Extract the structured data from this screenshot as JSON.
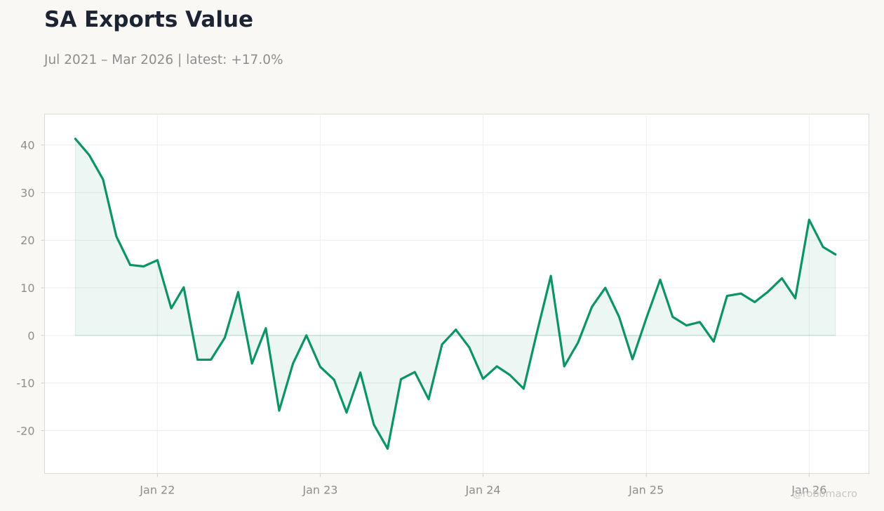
{
  "header": {
    "title": "SA Exports Value",
    "subtitle": "Jul 2021 – Mar 2026 | latest: +17.0%",
    "watermark": "@robomacro"
  },
  "colors": {
    "line": "#0c9466",
    "fill": "#0c9466",
    "background": "#f9f8f5",
    "plot_background": "#ffffff"
  },
  "chart_data": {
    "type": "area",
    "title": "SA Exports Value",
    "subtitle": "Jul 2021 – Mar 2026 | latest: +17.0%",
    "xlabel": "",
    "ylabel": "",
    "grid": true,
    "legend": "none",
    "ylim": [
      -29,
      46.5
    ],
    "xlim": [
      "2021-04-23",
      "2026-05-15"
    ],
    "y_ticks": [
      40,
      30,
      20,
      10,
      0,
      -10,
      -20
    ],
    "y_tick_labels": [
      "40",
      "30",
      "20",
      "10",
      "0",
      "-10",
      "-20"
    ],
    "x_ticks": [
      "2022-01-01",
      "2023-01-01",
      "2024-01-01",
      "2025-01-01",
      "2026-01-01"
    ],
    "x_tick_labels": [
      "Jan 22",
      "Jan 23",
      "Jan 24",
      "Jan 25",
      "Jan 26"
    ],
    "series": [
      {
        "x": [
          "2021-07-01",
          "2021-08-01",
          "2021-09-01",
          "2021-10-01",
          "2021-11-01",
          "2021-12-01",
          "2022-01-01",
          "2022-02-01",
          "2022-03-01",
          "2022-04-01",
          "2022-05-01",
          "2022-06-01",
          "2022-07-01",
          "2022-08-01",
          "2022-09-01",
          "2022-10-01",
          "2022-11-01",
          "2022-12-01",
          "2023-01-01",
          "2023-02-01",
          "2023-03-01",
          "2023-04-01",
          "2023-05-01",
          "2023-06-01",
          "2023-07-01",
          "2023-08-01",
          "2023-09-01",
          "2023-10-01",
          "2023-11-01",
          "2023-12-01",
          "2024-01-01",
          "2024-02-01",
          "2024-03-01",
          "2024-04-01",
          "2024-05-01",
          "2024-06-01",
          "2024-07-01",
          "2024-08-01",
          "2024-09-01",
          "2024-10-01",
          "2024-11-01",
          "2024-12-01",
          "2025-01-01",
          "2025-02-01",
          "2025-03-01",
          "2025-04-01",
          "2025-05-01",
          "2025-06-01",
          "2025-07-01",
          "2025-08-01",
          "2025-09-01",
          "2025-10-01",
          "2025-11-01",
          "2025-12-01",
          "2026-01-01",
          "2026-02-01",
          "2026-03-01"
        ],
        "values": [
          41.3,
          37.9,
          32.8,
          20.8,
          14.8,
          14.5,
          15.8,
          5.7,
          10.1,
          -5.1,
          -5.1,
          -0.5,
          9.1,
          -5.9,
          1.5,
          -15.8,
          -5.9,
          0.0,
          -6.6,
          -9.3,
          -16.2,
          -7.8,
          -18.7,
          -23.8,
          -9.2,
          -7.7,
          -13.4,
          -1.9,
          1.2,
          -2.5,
          -9.1,
          -6.5,
          -8.3,
          -11.2,
          0.7,
          12.5,
          -6.5,
          -1.5,
          6.0,
          10.0,
          3.9,
          -5.0,
          3.6,
          11.7,
          3.9,
          2.1,
          2.8,
          -1.3,
          8.3,
          8.8,
          7.0,
          9.2,
          12.0,
          7.8,
          24.3,
          18.6,
          17.0
        ]
      }
    ]
  }
}
